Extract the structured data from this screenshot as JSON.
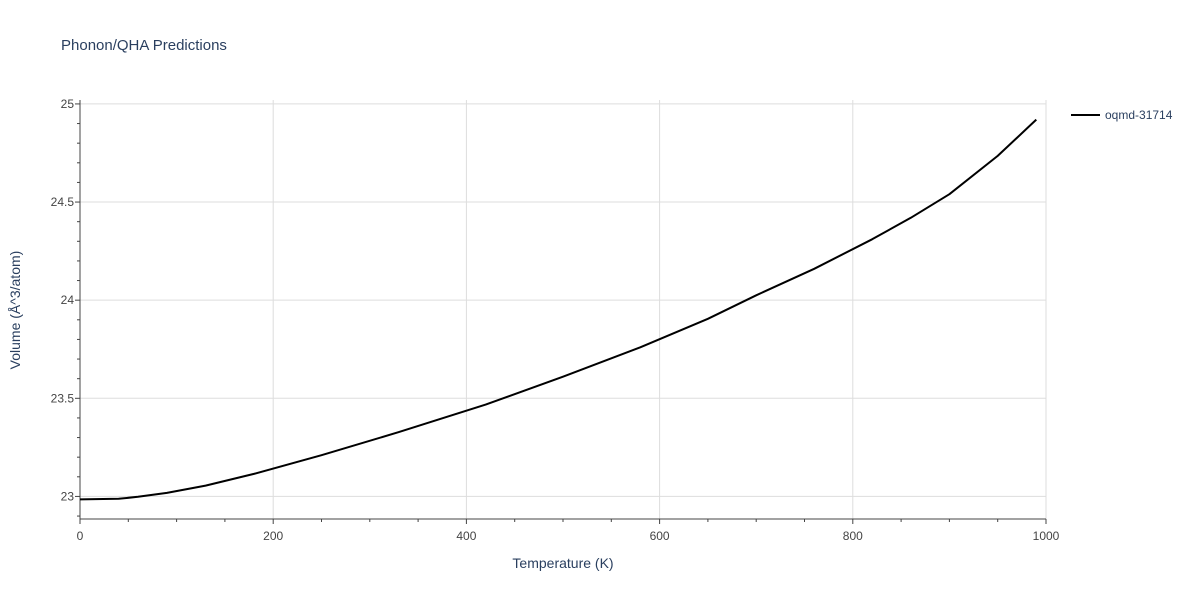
{
  "chart_data": {
    "type": "line",
    "title": "Phonon/QHA Predictions",
    "xlabel": "Temperature (K)",
    "ylabel": "Volume (Å^3/atom)",
    "xlim": [
      0,
      1000
    ],
    "ylim": [
      22.885,
      25.02
    ],
    "xticks": [
      0,
      200,
      400,
      600,
      800,
      1000
    ],
    "yticks": [
      23,
      23.5,
      24,
      24.5,
      25
    ],
    "grid": true,
    "legend_placement": "top-right outside",
    "series": [
      {
        "name": "oqmd-31714",
        "color": "#000000",
        "x": [
          0,
          40,
          60,
          90,
          130,
          180,
          250,
          330,
          420,
          500,
          580,
          650,
          700,
          760,
          820,
          860,
          900,
          950,
          990
        ],
        "y": [
          22.985,
          22.988,
          22.998,
          23.018,
          23.055,
          23.115,
          23.21,
          23.328,
          23.468,
          23.61,
          23.76,
          23.905,
          24.025,
          24.16,
          24.31,
          24.42,
          24.54,
          24.735,
          24.92
        ]
      }
    ]
  }
}
